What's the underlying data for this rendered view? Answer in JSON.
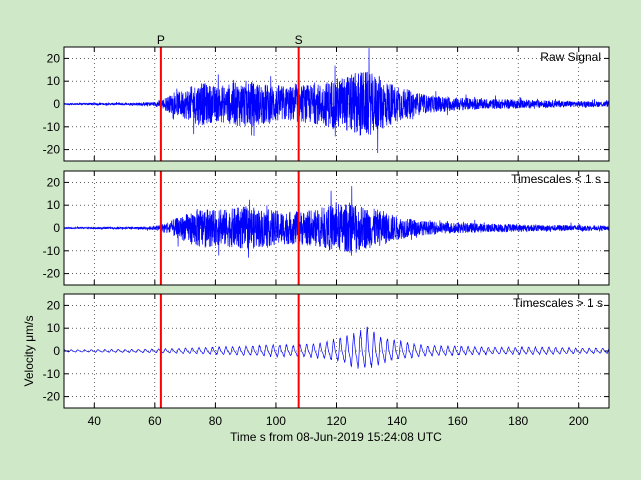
{
  "colors": {
    "background": "#cfe8c8",
    "axes_background": "#ffffff",
    "trace": "#0000ff",
    "phase_marker": "#ff0000"
  },
  "chart_data": [
    {
      "type": "line",
      "panel_label": "Raw Signal",
      "xlim": [
        30,
        210
      ],
      "ylim": [
        -25,
        25
      ],
      "xticks": [
        40,
        60,
        80,
        100,
        120,
        140,
        160,
        180,
        200
      ],
      "yticks": [
        -20,
        -10,
        0,
        10,
        20
      ],
      "ytick_labels": [
        "-20",
        "-10",
        "0",
        "10",
        "20"
      ],
      "show_xtick_labels": false,
      "grid": true,
      "ylabel": "",
      "phase_markers": [
        {
          "label": "P",
          "x": 62
        },
        {
          "label": "S",
          "x": 107.5
        }
      ],
      "series": [
        {
          "x": [
            30,
            40,
            50,
            55,
            60,
            62,
            65,
            70,
            75,
            80,
            85,
            90,
            95,
            100,
            105,
            110,
            115,
            120,
            125,
            128,
            130,
            135,
            140,
            145,
            150,
            160,
            170,
            180,
            190,
            200,
            210
          ],
          "envelope": [
            0.5,
            0.7,
            0.8,
            1,
            1.5,
            3,
            6,
            10,
            15,
            12,
            14,
            16,
            14,
            13,
            12,
            13,
            14,
            18,
            20,
            23,
            22,
            18,
            12,
            9,
            6,
            4.5,
            3.5,
            3,
            2.5,
            2,
            2
          ]
        }
      ]
    },
    {
      "type": "line",
      "panel_label": "Timescales < 1 s",
      "xlim": [
        30,
        210
      ],
      "ylim": [
        -25,
        25
      ],
      "xticks": [
        40,
        60,
        80,
        100,
        120,
        140,
        160,
        180,
        200
      ],
      "yticks": [
        -20,
        -10,
        0,
        10,
        20
      ],
      "ytick_labels": [
        "-20",
        "-10",
        "0",
        "10",
        "20"
      ],
      "show_xtick_labels": false,
      "grid": true,
      "ylabel": "",
      "phase_markers": [
        {
          "label": "",
          "x": 62
        },
        {
          "label": "",
          "x": 107.5
        }
      ],
      "series": [
        {
          "x": [
            30,
            40,
            50,
            55,
            60,
            62,
            65,
            70,
            75,
            80,
            85,
            90,
            95,
            100,
            105,
            110,
            115,
            120,
            125,
            128,
            130,
            135,
            140,
            145,
            150,
            160,
            170,
            180,
            190,
            200,
            210
          ],
          "envelope": [
            0.4,
            0.6,
            0.7,
            0.8,
            1.3,
            2.5,
            5,
            9,
            14,
            12,
            13,
            15,
            13,
            12,
            11,
            12,
            13,
            17,
            16,
            15,
            14,
            12,
            8,
            6,
            4.5,
            3.5,
            3,
            2.5,
            2,
            2,
            1.5
          ]
        }
      ]
    },
    {
      "type": "line",
      "panel_label": "Timescales > 1 s",
      "xlim": [
        30,
        210
      ],
      "ylim": [
        -25,
        25
      ],
      "xticks": [
        40,
        60,
        80,
        100,
        120,
        140,
        160,
        180,
        200
      ],
      "xtick_labels": [
        "40",
        "60",
        "80",
        "100",
        "120",
        "140",
        "160",
        "180",
        "200"
      ],
      "yticks": [
        -20,
        -10,
        0,
        10,
        20
      ],
      "ytick_labels": [
        "-20",
        "-10",
        "0",
        "10",
        "20"
      ],
      "show_xtick_labels": true,
      "grid": true,
      "ylabel": "Velocity μm/s",
      "xlabel": "Time s from 08-Jun-2019 15:24:08 UTC",
      "phase_markers": [
        {
          "label": "",
          "x": 62
        },
        {
          "label": "",
          "x": 107.5
        }
      ],
      "series": [
        {
          "x": [
            30,
            50,
            60,
            65,
            70,
            80,
            90,
            95,
            100,
            105,
            110,
            115,
            120,
            125,
            128,
            130,
            133,
            138,
            145,
            150,
            160,
            170,
            180,
            190,
            200,
            210
          ],
          "envelope": [
            0.6,
            0.8,
            1,
            1.2,
            1.5,
            2,
            2.5,
            3,
            3.5,
            3,
            3.5,
            4.5,
            6,
            9,
            11,
            12,
            9,
            6,
            4,
            3,
            2.5,
            2,
            2,
            2,
            1.5,
            1.5
          ]
        }
      ]
    }
  ]
}
